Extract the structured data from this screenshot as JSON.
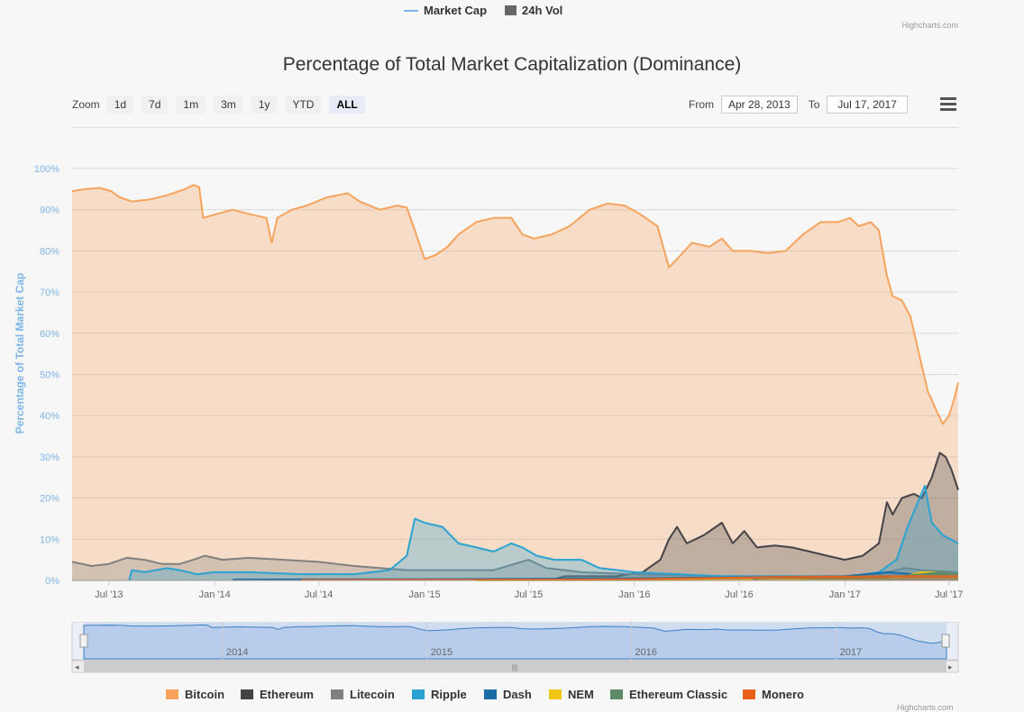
{
  "top_legend": {
    "market_cap": "Market Cap",
    "vol": "24h Vol"
  },
  "credits": "Highcharts.com",
  "toolbar": {
    "zoom_label": "Zoom",
    "buttons": [
      "1d",
      "7d",
      "1m",
      "3m",
      "1y",
      "YTD",
      "ALL"
    ],
    "active": "ALL",
    "from_label": "From",
    "from_value": "Apr 28, 2013",
    "to_label": "To",
    "to_value": "Jul 17, 2017"
  },
  "colors": {
    "Bitcoin": "#f7a35c",
    "Ethereum": "#434348",
    "Litecoin": "#808080",
    "Ripple": "#2aa3d2",
    "Dash": "#1a6ea5",
    "NEM": "#f1c40f",
    "Ethereum Classic": "#5d8a67",
    "Monero": "#e8601a"
  },
  "chart_data": {
    "type": "area",
    "title": "Percentage of Total Market Capitalization (Dominance)",
    "ylabel": "Percentage of Total Market Cap",
    "ylim": [
      0,
      100
    ],
    "yticks": [
      "0%",
      "10%",
      "20%",
      "30%",
      "40%",
      "50%",
      "60%",
      "70%",
      "80%",
      "90%",
      "100%"
    ],
    "xlim": [
      "2013-04-28",
      "2017-07-17"
    ],
    "xticks": [
      {
        "label": "Jul '13",
        "date": "2013-07-01"
      },
      {
        "label": "Jan '14",
        "date": "2014-01-01"
      },
      {
        "label": "Jul '14",
        "date": "2014-07-01"
      },
      {
        "label": "Jan '15",
        "date": "2015-01-01"
      },
      {
        "label": "Jul '15",
        "date": "2015-07-01"
      },
      {
        "label": "Jan '16",
        "date": "2016-01-01"
      },
      {
        "label": "Jul '16",
        "date": "2016-07-01"
      },
      {
        "label": "Jan '17",
        "date": "2017-01-01"
      },
      {
        "label": "Jul '17",
        "date": "2017-07-01"
      }
    ],
    "navigator_labels": [
      "2014",
      "2015",
      "2016",
      "2017"
    ],
    "series": [
      {
        "name": "Bitcoin",
        "points": [
          [
            "2013-04-28",
            94.5
          ],
          [
            "2013-05-20",
            95
          ],
          [
            "2013-06-15",
            95.3
          ],
          [
            "2013-07-05",
            94.5
          ],
          [
            "2013-07-20",
            93
          ],
          [
            "2013-08-10",
            92
          ],
          [
            "2013-09-10",
            92.5
          ],
          [
            "2013-10-10",
            93.5
          ],
          [
            "2013-11-10",
            95
          ],
          [
            "2013-11-25",
            96
          ],
          [
            "2013-12-05",
            95.5
          ],
          [
            "2013-12-12",
            88
          ],
          [
            "2014-01-05",
            89
          ],
          [
            "2014-02-01",
            90
          ],
          [
            "2014-03-01",
            89
          ],
          [
            "2014-04-01",
            88
          ],
          [
            "2014-04-10",
            82
          ],
          [
            "2014-04-20",
            88
          ],
          [
            "2014-05-15",
            90
          ],
          [
            "2014-06-10",
            91
          ],
          [
            "2014-07-15",
            93
          ],
          [
            "2014-08-20",
            94
          ],
          [
            "2014-09-10",
            92
          ],
          [
            "2014-10-15",
            90
          ],
          [
            "2014-11-15",
            91
          ],
          [
            "2014-12-01",
            90.5
          ],
          [
            "2014-12-15",
            85
          ],
          [
            "2015-01-01",
            78
          ],
          [
            "2015-01-20",
            79
          ],
          [
            "2015-02-10",
            81
          ],
          [
            "2015-03-01",
            84
          ],
          [
            "2015-04-01",
            87
          ],
          [
            "2015-05-01",
            88
          ],
          [
            "2015-06-01",
            88
          ],
          [
            "2015-06-20",
            84
          ],
          [
            "2015-07-10",
            83
          ],
          [
            "2015-08-10",
            84
          ],
          [
            "2015-09-10",
            86
          ],
          [
            "2015-10-15",
            90
          ],
          [
            "2015-11-15",
            91.5
          ],
          [
            "2015-12-15",
            91
          ],
          [
            "2016-01-10",
            89
          ],
          [
            "2016-02-10",
            86
          ],
          [
            "2016-03-01",
            76
          ],
          [
            "2016-03-15",
            78
          ],
          [
            "2016-04-10",
            82
          ],
          [
            "2016-05-10",
            81
          ],
          [
            "2016-06-01",
            83
          ],
          [
            "2016-06-20",
            80
          ],
          [
            "2016-07-20",
            80
          ],
          [
            "2016-08-20",
            79.5
          ],
          [
            "2016-09-20",
            80
          ],
          [
            "2016-10-20",
            84
          ],
          [
            "2016-11-20",
            87
          ],
          [
            "2016-12-20",
            87
          ],
          [
            "2017-01-10",
            88
          ],
          [
            "2017-01-25",
            86
          ],
          [
            "2017-02-15",
            87
          ],
          [
            "2017-03-01",
            85
          ],
          [
            "2017-03-15",
            74
          ],
          [
            "2017-03-25",
            69
          ],
          [
            "2017-04-10",
            68
          ],
          [
            "2017-04-25",
            64
          ],
          [
            "2017-05-10",
            55
          ],
          [
            "2017-05-25",
            46
          ],
          [
            "2017-06-10",
            41
          ],
          [
            "2017-06-20",
            38
          ],
          [
            "2017-07-01",
            40
          ],
          [
            "2017-07-10",
            44
          ],
          [
            "2017-07-17",
            48
          ]
        ]
      },
      {
        "name": "Ethereum",
        "points": [
          [
            "2015-08-07",
            0
          ],
          [
            "2015-09-01",
            1
          ],
          [
            "2015-12-01",
            1
          ],
          [
            "2016-01-15",
            2
          ],
          [
            "2016-02-15",
            5
          ],
          [
            "2016-03-01",
            10
          ],
          [
            "2016-03-15",
            13
          ],
          [
            "2016-04-01",
            9
          ],
          [
            "2016-05-01",
            11
          ],
          [
            "2016-06-01",
            14
          ],
          [
            "2016-06-20",
            9
          ],
          [
            "2016-07-10",
            12
          ],
          [
            "2016-08-01",
            8
          ],
          [
            "2016-09-01",
            8.5
          ],
          [
            "2016-10-01",
            8
          ],
          [
            "2016-11-01",
            7
          ],
          [
            "2016-12-01",
            6
          ],
          [
            "2017-01-01",
            5
          ],
          [
            "2017-02-01",
            6
          ],
          [
            "2017-03-01",
            9
          ],
          [
            "2017-03-15",
            19
          ],
          [
            "2017-03-25",
            16
          ],
          [
            "2017-04-10",
            20
          ],
          [
            "2017-05-01",
            21
          ],
          [
            "2017-05-15",
            20
          ],
          [
            "2017-06-01",
            25
          ],
          [
            "2017-06-15",
            31
          ],
          [
            "2017-06-25",
            30
          ],
          [
            "2017-07-05",
            27
          ],
          [
            "2017-07-17",
            22
          ]
        ]
      },
      {
        "name": "Litecoin",
        "points": [
          [
            "2013-04-28",
            4.5
          ],
          [
            "2013-06-01",
            3.5
          ],
          [
            "2013-07-01",
            4
          ],
          [
            "2013-08-01",
            5.5
          ],
          [
            "2013-09-01",
            5
          ],
          [
            "2013-10-01",
            4
          ],
          [
            "2013-11-01",
            4
          ],
          [
            "2013-11-25",
            5
          ],
          [
            "2013-12-15",
            6
          ],
          [
            "2014-01-15",
            5
          ],
          [
            "2014-03-01",
            5.5
          ],
          [
            "2014-05-01",
            5
          ],
          [
            "2014-07-01",
            4.5
          ],
          [
            "2014-09-01",
            3.5
          ],
          [
            "2014-10-15",
            3
          ],
          [
            "2014-12-01",
            2.5
          ],
          [
            "2015-02-01",
            2.5
          ],
          [
            "2015-05-01",
            2.5
          ],
          [
            "2015-07-01",
            5
          ],
          [
            "2015-08-01",
            3
          ],
          [
            "2015-10-01",
            2
          ],
          [
            "2016-01-01",
            1.5
          ],
          [
            "2016-06-01",
            1
          ],
          [
            "2017-01-01",
            1
          ],
          [
            "2017-03-01",
            1.5
          ],
          [
            "2017-04-15",
            3
          ],
          [
            "2017-05-15",
            2.5
          ],
          [
            "2017-07-17",
            2
          ]
        ]
      },
      {
        "name": "Ripple",
        "points": [
          [
            "2013-08-05",
            0
          ],
          [
            "2013-08-10",
            2.5
          ],
          [
            "2013-09-01",
            2
          ],
          [
            "2013-10-10",
            3
          ],
          [
            "2013-11-01",
            2.5
          ],
          [
            "2013-12-01",
            1.5
          ],
          [
            "2014-01-01",
            2
          ],
          [
            "2014-03-01",
            2
          ],
          [
            "2014-06-01",
            1.5
          ],
          [
            "2014-09-01",
            1.5
          ],
          [
            "2014-11-01",
            2.5
          ],
          [
            "2014-12-01",
            6
          ],
          [
            "2014-12-15",
            15
          ],
          [
            "2015-01-01",
            14
          ],
          [
            "2015-02-01",
            13
          ],
          [
            "2015-03-01",
            9
          ],
          [
            "2015-04-01",
            8
          ],
          [
            "2015-05-01",
            7
          ],
          [
            "2015-06-01",
            9
          ],
          [
            "2015-06-20",
            8
          ],
          [
            "2015-07-15",
            6
          ],
          [
            "2015-08-15",
            5
          ],
          [
            "2015-10-01",
            5
          ],
          [
            "2015-11-01",
            3
          ],
          [
            "2016-01-01",
            2
          ],
          [
            "2016-06-01",
            1
          ],
          [
            "2016-10-01",
            1
          ],
          [
            "2017-01-01",
            0.8
          ],
          [
            "2017-03-01",
            2
          ],
          [
            "2017-04-01",
            5
          ],
          [
            "2017-04-20",
            13
          ],
          [
            "2017-05-05",
            18
          ],
          [
            "2017-05-20",
            23
          ],
          [
            "2017-06-01",
            14
          ],
          [
            "2017-06-20",
            11
          ],
          [
            "2017-07-17",
            9
          ]
        ]
      },
      {
        "name": "Dash",
        "points": [
          [
            "2014-02-01",
            0.2
          ],
          [
            "2015-01-01",
            0.3
          ],
          [
            "2016-01-01",
            0.5
          ],
          [
            "2016-06-01",
            0.7
          ],
          [
            "2017-01-01",
            1
          ],
          [
            "2017-03-15",
            2
          ],
          [
            "2017-05-01",
            1.5
          ],
          [
            "2017-07-17",
            1.5
          ]
        ]
      },
      {
        "name": "NEM",
        "points": [
          [
            "2015-04-01",
            0
          ],
          [
            "2016-06-01",
            0.1
          ],
          [
            "2016-12-01",
            0.3
          ],
          [
            "2017-03-01",
            0.5
          ],
          [
            "2017-04-15",
            1
          ],
          [
            "2017-05-15",
            2
          ],
          [
            "2017-06-15",
            2
          ],
          [
            "2017-07-17",
            1.5
          ]
        ]
      },
      {
        "name": "Ethereum Classic",
        "points": [
          [
            "2016-07-25",
            0.2
          ],
          [
            "2016-08-10",
            0.8
          ],
          [
            "2016-12-01",
            0.5
          ],
          [
            "2017-03-01",
            0.6
          ],
          [
            "2017-05-15",
            1.5
          ],
          [
            "2017-06-15",
            2
          ],
          [
            "2017-07-17",
            1.5
          ]
        ]
      },
      {
        "name": "Monero",
        "points": [
          [
            "2014-06-01",
            0.1
          ],
          [
            "2015-06-01",
            0.2
          ],
          [
            "2016-01-01",
            0.3
          ],
          [
            "2016-09-01",
            0.8
          ],
          [
            "2017-01-01",
            0.9
          ],
          [
            "2017-03-15",
            1
          ],
          [
            "2017-07-17",
            1
          ]
        ]
      }
    ]
  }
}
